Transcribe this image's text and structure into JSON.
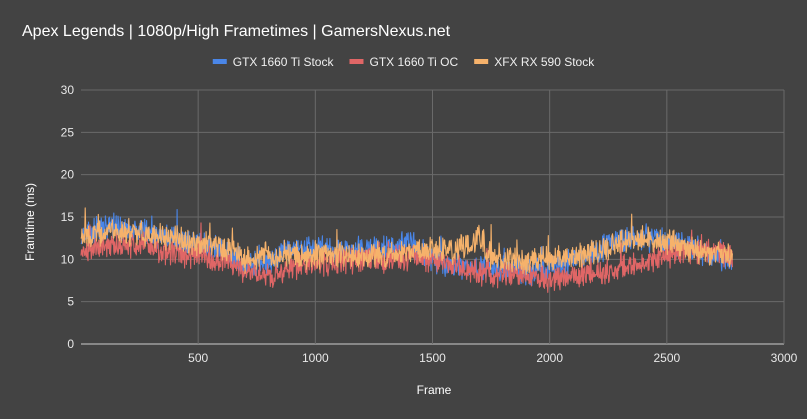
{
  "chart_data": {
    "type": "line",
    "title": "Apex Legends | 1080p/High Frametimes | GamersNexus.net",
    "xlabel": "Frame",
    "ylabel": "Framtime (ms)",
    "xlim": [
      0,
      3000
    ],
    "ylim": [
      0,
      30
    ],
    "x_ticks": [
      500,
      1000,
      1500,
      2000,
      2500,
      3000
    ],
    "y_ticks": [
      0,
      5,
      10,
      15,
      20,
      25,
      30
    ],
    "grid": true,
    "legend_position": "top",
    "series": [
      {
        "name": "GTX 1660 Ti Stock",
        "color": "#4a86e8",
        "frames": 2780,
        "profile_x": [
          0,
          150,
          300,
          450,
          550,
          650,
          700,
          800,
          900,
          1000,
          1100,
          1200,
          1300,
          1400,
          1500,
          1600,
          1700,
          1800,
          1900,
          2000,
          2100,
          2200,
          2300,
          2400,
          2500,
          2600,
          2700,
          2780
        ],
        "profile_y": [
          13.0,
          13.8,
          13.0,
          12.0,
          11.5,
          10.5,
          9.0,
          9.5,
          11.5,
          11.3,
          11.0,
          11.3,
          11.2,
          12.0,
          10.0,
          9.2,
          9.0,
          8.8,
          8.5,
          9.0,
          10.0,
          11.0,
          12.5,
          12.5,
          12.0,
          11.5,
          10.5,
          10.0
        ]
      },
      {
        "name": "GTX 1660 Ti OC",
        "color": "#e06666",
        "frames": 2780,
        "profile_x": [
          0,
          150,
          300,
          450,
          550,
          650,
          700,
          800,
          900,
          1000,
          1100,
          1200,
          1300,
          1400,
          1500,
          1600,
          1700,
          1800,
          1900,
          2000,
          2100,
          2200,
          2300,
          2400,
          2500,
          2600,
          2700,
          2780
        ],
        "profile_y": [
          11.0,
          11.8,
          11.5,
          10.5,
          10.0,
          9.5,
          8.5,
          8.0,
          9.0,
          9.5,
          9.8,
          10.0,
          10.0,
          10.3,
          10.0,
          9.0,
          8.5,
          8.2,
          7.8,
          7.8,
          8.0,
          8.3,
          8.8,
          9.5,
          10.5,
          10.8,
          11.0,
          10.5
        ]
      },
      {
        "name": "XFX RX 590 Stock",
        "color": "#f6b26b",
        "frames": 2780,
        "profile_x": [
          0,
          150,
          300,
          450,
          550,
          650,
          700,
          800,
          900,
          1000,
          1100,
          1200,
          1300,
          1400,
          1500,
          1600,
          1700,
          1750,
          1800,
          1900,
          2000,
          2100,
          2200,
          2300,
          2400,
          2500,
          2600,
          2700,
          2780
        ],
        "profile_y": [
          12.5,
          13.3,
          13.0,
          12.0,
          11.5,
          11.0,
          10.0,
          10.5,
          10.5,
          10.5,
          10.5,
          10.5,
          10.5,
          11.0,
          11.0,
          11.0,
          12.5,
          10.5,
          10.0,
          9.8,
          10.0,
          10.3,
          11.0,
          12.0,
          12.3,
          12.0,
          11.0,
          10.5,
          10.5
        ]
      }
    ]
  }
}
